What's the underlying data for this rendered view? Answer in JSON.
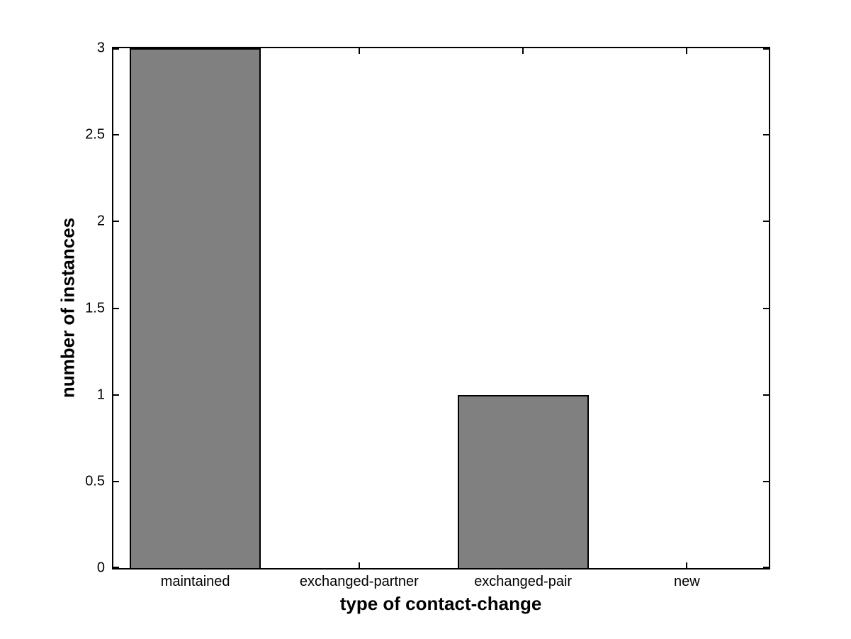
{
  "chart_data": {
    "type": "bar",
    "title": "",
    "categories": [
      "maintained",
      "exchanged-partner",
      "exchanged-pair",
      "new"
    ],
    "values": [
      3,
      0,
      1,
      0
    ],
    "xlabel": "type of contact-change",
    "ylabel": "number of instances",
    "ylim": [
      0,
      3
    ],
    "yticks": [
      0,
      0.5,
      1,
      1.5,
      2,
      2.5,
      3
    ],
    "ytick_labels": [
      "0",
      "0.5",
      "1",
      "1.5",
      "2",
      "2.5",
      "3"
    ],
    "bar_width_fraction": 0.8,
    "bar_color": "#808080",
    "bar_edge_color": "#000000",
    "axis_color": "#000000",
    "background_color": "#ffffff",
    "grid": false,
    "legend": "none",
    "tick_direction": "in"
  }
}
